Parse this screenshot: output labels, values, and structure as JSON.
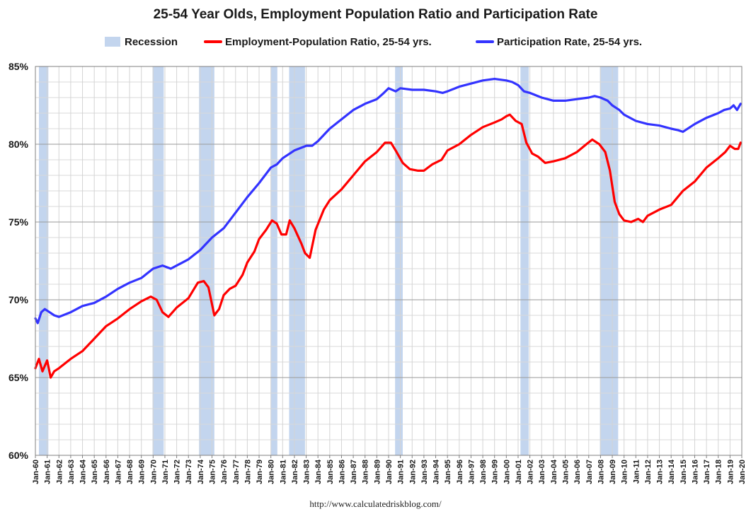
{
  "chart_data": {
    "type": "line",
    "title": "25-54 Year Olds, Employment Population Ratio and Participation Rate",
    "source": "http://www.calculatedriskblog.com/",
    "xlim": [
      1960,
      2020
    ],
    "ylim": [
      60,
      85
    ],
    "y_ticks": [
      60,
      65,
      70,
      75,
      80,
      85
    ],
    "y_tick_labels": [
      "60%",
      "65%",
      "70%",
      "75%",
      "80%",
      "85%"
    ],
    "x_tick_labels": [
      "Jan-60",
      "Jan-61",
      "Jan-62",
      "Jan-63",
      "Jan-64",
      "Jan-65",
      "Jan-66",
      "Jan-67",
      "Jan-68",
      "Jan-69",
      "Jan-70",
      "Jan-71",
      "Jan-72",
      "Jan-73",
      "Jan-74",
      "Jan-75",
      "Jan-76",
      "Jan-77",
      "Jan-78",
      "Jan-79",
      "Jan-80",
      "Jan-81",
      "Jan-82",
      "Jan-83",
      "Jan-84",
      "Jan-85",
      "Jan-86",
      "Jan-87",
      "Jan-88",
      "Jan-89",
      "Jan-90",
      "Jan-91",
      "Jan-92",
      "Jan-93",
      "Jan-94",
      "Jan-95",
      "Jan-96",
      "Jan-97",
      "Jan-98",
      "Jan-99",
      "Jan-00",
      "Jan-01",
      "Jan-02",
      "Jan-03",
      "Jan-04",
      "Jan-05",
      "Jan-06",
      "Jan-07",
      "Jan-08",
      "Jan-09",
      "Jan-10",
      "Jan-11",
      "Jan-12",
      "Jan-13",
      "Jan-14",
      "Jan-15",
      "Jan-16",
      "Jan-17",
      "Jan-18",
      "Jan-19",
      "Jan-20"
    ],
    "grid": true,
    "legend_position": "top",
    "recessions": {
      "name": "Recession",
      "color": "#c3d5ee",
      "periods": [
        [
          1960.3,
          1961.1
        ],
        [
          1969.95,
          1970.9
        ],
        [
          1973.9,
          1975.2
        ],
        [
          1980.0,
          1980.55
        ],
        [
          1981.55,
          1982.9
        ],
        [
          1990.55,
          1991.2
        ],
        [
          2001.2,
          2001.9
        ],
        [
          2007.95,
          2009.5
        ]
      ]
    },
    "series": [
      {
        "name": "Employment-Population Ratio, 25-54 yrs.",
        "color": "#ff0000",
        "x": [
          1960.0,
          1960.3,
          1960.6,
          1961.0,
          1961.3,
          1961.6,
          1962.0,
          1963.0,
          1964.0,
          1965.0,
          1966.0,
          1967.0,
          1968.0,
          1969.0,
          1969.8,
          1970.3,
          1970.8,
          1971.3,
          1972.0,
          1973.0,
          1973.8,
          1974.3,
          1974.7,
          1975.2,
          1975.6,
          1976.0,
          1976.5,
          1977.0,
          1977.6,
          1978.0,
          1978.6,
          1979.0,
          1979.6,
          1980.1,
          1980.5,
          1980.9,
          1981.3,
          1981.6,
          1982.0,
          1982.6,
          1982.9,
          1983.3,
          1983.8,
          1984.5,
          1985.0,
          1986.0,
          1987.0,
          1988.0,
          1989.0,
          1989.7,
          1990.2,
          1990.6,
          1991.2,
          1991.8,
          1992.5,
          1993.0,
          1993.7,
          1994.5,
          1995.0,
          1996.0,
          1997.0,
          1998.0,
          1999.0,
          1999.6,
          2000.0,
          2000.3,
          2000.8,
          2001.3,
          2001.7,
          2002.2,
          2002.7,
          2003.3,
          2004.0,
          2005.0,
          2006.0,
          2006.8,
          2007.3,
          2007.9,
          2008.4,
          2008.8,
          2009.2,
          2009.6,
          2010.0,
          2010.6,
          2011.2,
          2011.6,
          2012.0,
          2013.0,
          2014.0,
          2015.0,
          2016.0,
          2017.0,
          2018.0,
          2018.6,
          2019.0,
          2019.4,
          2019.7,
          2019.9
        ],
        "values": [
          65.6,
          66.2,
          65.4,
          66.1,
          65.0,
          65.4,
          65.6,
          66.2,
          66.7,
          67.5,
          68.3,
          68.8,
          69.4,
          69.9,
          70.2,
          70.0,
          69.2,
          68.9,
          69.5,
          70.1,
          71.1,
          71.2,
          70.8,
          69.0,
          69.4,
          70.3,
          70.7,
          70.9,
          71.6,
          72.4,
          73.1,
          73.9,
          74.5,
          75.1,
          74.9,
          74.2,
          74.2,
          75.1,
          74.6,
          73.6,
          73.0,
          72.7,
          74.5,
          75.8,
          76.4,
          77.1,
          78.0,
          78.9,
          79.5,
          80.1,
          80.1,
          79.6,
          78.8,
          78.4,
          78.3,
          78.3,
          78.7,
          79.0,
          79.6,
          80.0,
          80.6,
          81.1,
          81.4,
          81.6,
          81.8,
          81.9,
          81.5,
          81.3,
          80.1,
          79.4,
          79.2,
          78.8,
          78.9,
          79.1,
          79.5,
          80.0,
          80.3,
          80.0,
          79.5,
          78.3,
          76.3,
          75.5,
          75.1,
          75.0,
          75.2,
          75.0,
          75.4,
          75.8,
          76.1,
          77.0,
          77.6,
          78.5,
          79.1,
          79.5,
          79.9,
          79.7,
          79.7,
          80.1
        ]
      },
      {
        "name": "Participation Rate, 25-54 yrs.",
        "color": "#3333ff",
        "x": [
          1960.0,
          1960.2,
          1960.5,
          1960.8,
          1961.2,
          1961.6,
          1962.0,
          1963.0,
          1964.0,
          1965.0,
          1966.0,
          1967.0,
          1968.0,
          1969.0,
          1970.0,
          1970.8,
          1971.5,
          1972.0,
          1973.0,
          1974.0,
          1975.0,
          1976.0,
          1977.0,
          1978.0,
          1979.0,
          1980.0,
          1980.5,
          1981.0,
          1982.0,
          1983.0,
          1983.5,
          1984.0,
          1985.0,
          1986.0,
          1987.0,
          1988.0,
          1989.0,
          1989.6,
          1990.0,
          1990.6,
          1991.0,
          1992.0,
          1993.0,
          1994.0,
          1994.6,
          1995.0,
          1996.0,
          1997.0,
          1998.0,
          1999.0,
          2000.0,
          2000.5,
          2001.0,
          2001.5,
          2002.0,
          2003.0,
          2004.0,
          2005.0,
          2006.0,
          2007.0,
          2007.5,
          2008.0,
          2008.6,
          2009.0,
          2009.6,
          2010.0,
          2011.0,
          2012.0,
          2013.0,
          2014.0,
          2014.6,
          2015.0,
          2016.0,
          2017.0,
          2018.0,
          2018.5,
          2019.0,
          2019.3,
          2019.6,
          2019.9
        ],
        "values": [
          68.8,
          68.5,
          69.2,
          69.4,
          69.2,
          69.0,
          68.9,
          69.2,
          69.6,
          69.8,
          70.2,
          70.7,
          71.1,
          71.4,
          72.0,
          72.2,
          72.0,
          72.2,
          72.6,
          73.2,
          74.0,
          74.6,
          75.6,
          76.6,
          77.5,
          78.5,
          78.7,
          79.1,
          79.6,
          79.9,
          79.9,
          80.2,
          81.0,
          81.6,
          82.2,
          82.6,
          82.9,
          83.3,
          83.6,
          83.4,
          83.6,
          83.5,
          83.5,
          83.4,
          83.3,
          83.4,
          83.7,
          83.9,
          84.1,
          84.2,
          84.1,
          84.0,
          83.8,
          83.4,
          83.3,
          83.0,
          82.8,
          82.8,
          82.9,
          83.0,
          83.1,
          83.0,
          82.8,
          82.5,
          82.2,
          81.9,
          81.5,
          81.3,
          81.2,
          81.0,
          80.9,
          80.8,
          81.3,
          81.7,
          82.0,
          82.2,
          82.3,
          82.5,
          82.2,
          82.6
        ]
      }
    ]
  }
}
